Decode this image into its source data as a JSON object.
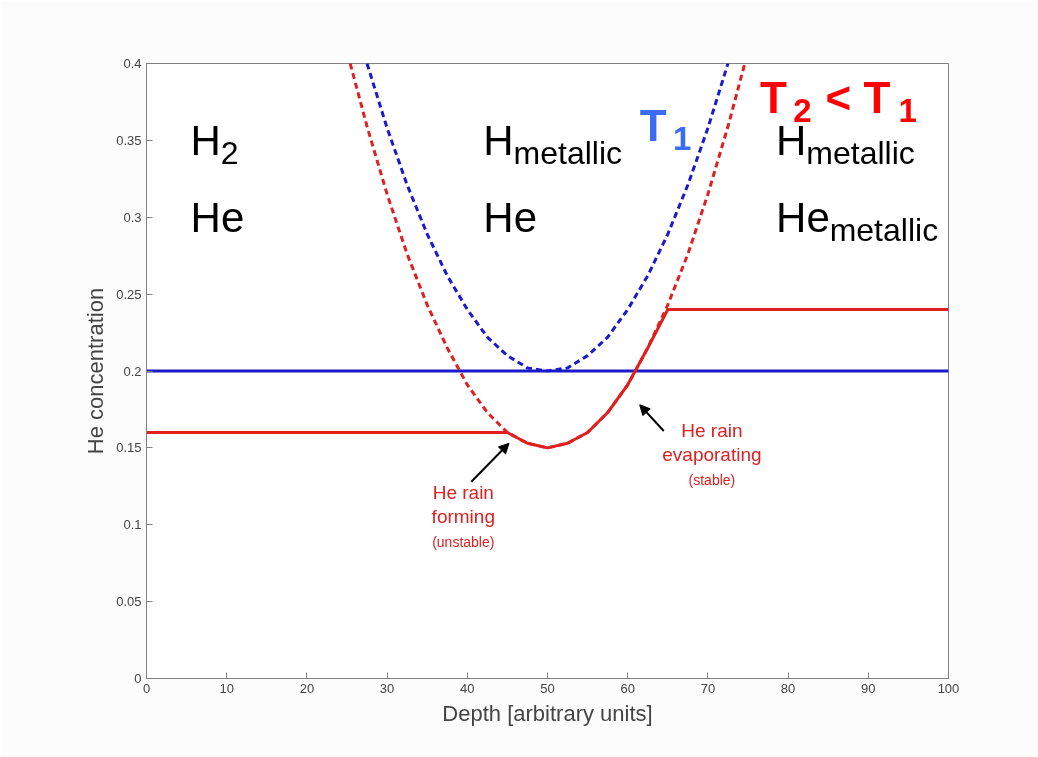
{
  "chart_data": {
    "type": "line",
    "xlabel": "Depth [arbitrary units]",
    "ylabel": "He concentration",
    "xlim": [
      0,
      100
    ],
    "ylim": [
      0,
      0.4
    ],
    "xticks": [
      0,
      10,
      20,
      30,
      40,
      50,
      60,
      70,
      80,
      90,
      100
    ],
    "yticks": [
      0,
      0.05,
      0.1,
      0.15,
      0.2,
      0.25,
      0.3,
      0.35,
      0.4
    ],
    "grid": false,
    "series": [
      {
        "color": "#1a1acc",
        "line_style": "solid",
        "x": [
          0,
          100
        ],
        "values": [
          0.2,
          0.2
        ]
      },
      {
        "color": "#1a1acc",
        "line_style": "dashed",
        "x": [
          27.5,
          30,
          32.5,
          35,
          37.5,
          40,
          42.5,
          45,
          47.5,
          50,
          52.5,
          55,
          57.5,
          60,
          62.5,
          65,
          67.5,
          70,
          72.5
        ],
        "values": [
          0.4,
          0.358,
          0.321,
          0.289,
          0.262,
          0.24,
          0.222,
          0.21,
          0.202,
          0.2,
          0.202,
          0.21,
          0.222,
          0.24,
          0.262,
          0.289,
          0.321,
          0.358,
          0.4
        ]
      },
      {
        "color": "#e02020",
        "line_style": "dashed",
        "x": [
          25.4,
          27.5,
          30,
          32.5,
          35,
          37.5,
          40,
          42.5,
          45,
          47.5,
          50,
          52.5,
          55,
          57.5,
          60,
          62.5,
          65,
          67.5,
          70,
          72.5,
          74.6
        ],
        "values": [
          0.4,
          0.359,
          0.315,
          0.276,
          0.243,
          0.215,
          0.191,
          0.173,
          0.16,
          0.153,
          0.15,
          0.153,
          0.16,
          0.173,
          0.191,
          0.215,
          0.243,
          0.276,
          0.315,
          0.359,
          0.4
        ]
      },
      {
        "color": "#e02020",
        "line_style": "solid",
        "x": [
          0,
          45,
          47.5,
          50,
          52.5,
          55,
          57.5,
          60,
          62.5,
          65,
          100
        ],
        "values": [
          0.16,
          0.16,
          0.153,
          0.15,
          0.153,
          0.16,
          0.173,
          0.191,
          0.215,
          0.24,
          0.24
        ]
      }
    ],
    "annotations": [
      "H$_{2}$",
      "He",
      "H$_{metallic}$",
      "He",
      "H$_{metallic}$",
      "He$_{metallic}$",
      "T$_{1}$",
      "T$_{2}$ < T$_{1}$",
      "He rain forming (unstable)",
      "He rain evaporating (stable)"
    ]
  }
}
